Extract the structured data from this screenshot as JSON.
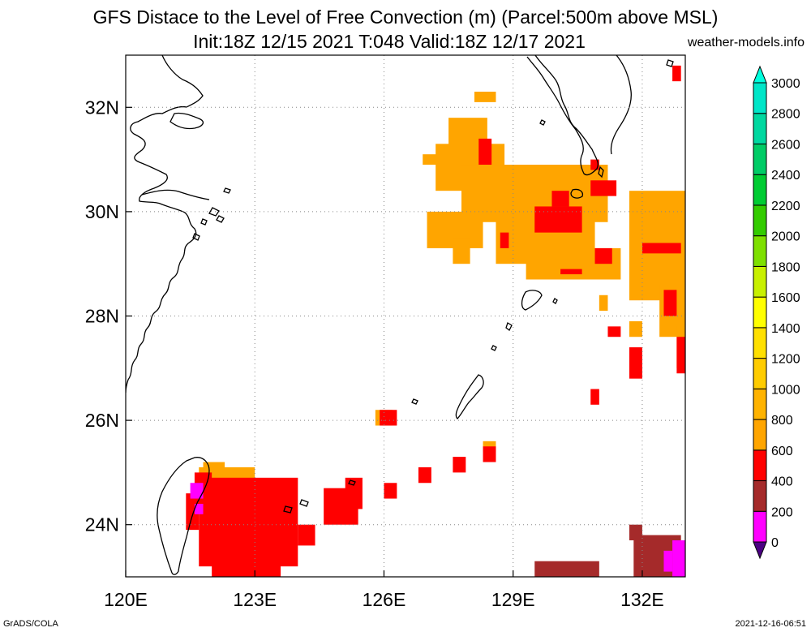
{
  "title_line1": "GFS Distace to the Level of Free Convection (m) (Parcel:500m above MSL)",
  "title_line2": "Init:18Z 12/15 2021 T:048 Valid:18Z 12/17 2021",
  "credit": "weather-models.info",
  "footer_left": "GrADS/COLA",
  "footer_right": "2021-12-16-06:51",
  "map": {
    "lon_range": [
      120,
      133
    ],
    "lat_range": [
      23,
      33
    ],
    "lon_ticks": [
      {
        "v": 120,
        "label": "120E"
      },
      {
        "v": 123,
        "label": "123E"
      },
      {
        "v": 126,
        "label": "126E"
      },
      {
        "v": 129,
        "label": "129E"
      },
      {
        "v": 132,
        "label": "132E"
      }
    ],
    "lat_ticks": [
      {
        "v": 24,
        "label": "24N"
      },
      {
        "v": 26,
        "label": "26N"
      },
      {
        "v": 28,
        "label": "28N"
      },
      {
        "v": 30,
        "label": "30N"
      },
      {
        "v": 32,
        "label": "32N"
      }
    ],
    "grid": true
  },
  "colorbar": {
    "levels": [
      "0",
      "200",
      "400",
      "600",
      "800",
      "1000",
      "1200",
      "1400",
      "1600",
      "1800",
      "2000",
      "2200",
      "2400",
      "2600",
      "2800",
      "3000"
    ],
    "colors": [
      "#4b0082",
      "#ff00ff",
      "#a52a2a",
      "#ff0000",
      "#ffa500",
      "#ffb300",
      "#ffcc00",
      "#ffe000",
      "#ffff00",
      "#c8f000",
      "#7ee000",
      "#33cc00",
      "#00cc33",
      "#00cc66",
      "#00d8a0",
      "#00e6c8",
      "#00ffdd"
    ]
  },
  "fields": [
    {
      "name": "orange-patch",
      "color": "#ffa500",
      "boxes": [
        [
          127.5,
          31.2,
          128.4,
          31.8
        ],
        [
          127.2,
          30.4,
          128.8,
          31.3
        ],
        [
          128.1,
          32.1,
          128.6,
          32.3
        ],
        [
          127.8,
          29.8,
          131.2,
          30.9
        ],
        [
          128.6,
          29.0,
          130.9,
          30.0
        ],
        [
          129.3,
          28.7,
          131.5,
          29.3
        ],
        [
          126.9,
          30.9,
          127.3,
          31.1
        ],
        [
          127.0,
          29.3,
          128.3,
          30.0
        ],
        [
          127.6,
          29.0,
          128.0,
          29.5
        ],
        [
          131.7,
          28.3,
          133.0,
          30.4
        ],
        [
          132.4,
          27.6,
          133.0,
          28.6
        ],
        [
          132.8,
          27.0,
          133.0,
          27.8
        ],
        [
          131.7,
          27.6,
          132.0,
          27.9
        ],
        [
          131.0,
          28.1,
          131.2,
          28.4
        ],
        [
          125.8,
          25.9,
          126.2,
          26.2
        ],
        [
          121.7,
          24.6,
          123.0,
          25.1
        ],
        [
          121.8,
          24.7,
          122.3,
          25.2
        ],
        [
          128.3,
          25.4,
          128.6,
          25.6
        ]
      ]
    },
    {
      "name": "red-patch",
      "color": "#ff0000",
      "boxes": [
        [
          128.2,
          30.9,
          128.5,
          31.4
        ],
        [
          129.5,
          29.6,
          130.6,
          30.1
        ],
        [
          129.9,
          30.1,
          130.3,
          30.4
        ],
        [
          128.7,
          29.3,
          128.9,
          29.6
        ],
        [
          130.9,
          29.0,
          131.3,
          29.3
        ],
        [
          130.1,
          28.8,
          130.6,
          28.9
        ],
        [
          130.8,
          30.3,
          131.4,
          30.6
        ],
        [
          130.8,
          30.8,
          131.0,
          31.0
        ],
        [
          132.0,
          29.2,
          132.9,
          29.4
        ],
        [
          132.5,
          28.0,
          132.8,
          28.5
        ],
        [
          132.8,
          26.9,
          133.0,
          27.6
        ],
        [
          131.7,
          26.8,
          132.0,
          27.4
        ],
        [
          131.2,
          27.6,
          131.5,
          27.8
        ],
        [
          130.8,
          26.3,
          131.0,
          26.6
        ],
        [
          132.7,
          32.5,
          132.9,
          32.8
        ],
        [
          125.9,
          25.9,
          126.3,
          26.2
        ],
        [
          128.3,
          25.2,
          128.6,
          25.5
        ],
        [
          127.6,
          25.0,
          127.9,
          25.3
        ],
        [
          126.8,
          24.8,
          127.1,
          25.1
        ],
        [
          126.0,
          24.5,
          126.3,
          24.8
        ],
        [
          124.6,
          24.0,
          125.4,
          24.7
        ],
        [
          125.1,
          24.3,
          125.5,
          24.9
        ],
        [
          121.7,
          23.2,
          124.0,
          24.9
        ],
        [
          122.0,
          22.7,
          123.6,
          23.8
        ],
        [
          124.0,
          23.6,
          124.4,
          24.0
        ],
        [
          121.4,
          23.9,
          121.7,
          24.6
        ],
        [
          121.6,
          24.4,
          122.0,
          25.0
        ],
        [
          122.9,
          24.4,
          123.2,
          24.8
        ]
      ]
    },
    {
      "name": "brown-patch",
      "color": "#a52a2a",
      "boxes": [
        [
          129.5,
          22.8,
          131.0,
          23.3
        ],
        [
          131.8,
          22.8,
          132.9,
          23.8
        ],
        [
          131.7,
          23.7,
          132.0,
          24.0
        ]
      ]
    },
    {
      "name": "magenta-patch",
      "color": "#ff00ff",
      "boxes": [
        [
          132.7,
          22.9,
          133.0,
          23.7
        ],
        [
          132.5,
          23.1,
          132.7,
          23.5
        ],
        [
          121.5,
          24.5,
          121.8,
          24.8
        ],
        [
          121.6,
          24.2,
          121.8,
          24.4
        ]
      ]
    }
  ]
}
